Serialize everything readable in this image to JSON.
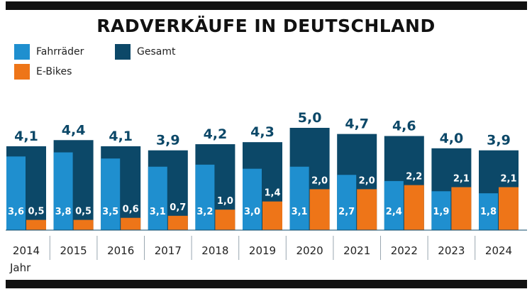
{
  "chart_data": {
    "type": "bar",
    "title": "RADVERKÄUFE IN DEUTSCHLAND",
    "xlabel": "Jahr",
    "ylabel": "",
    "categories": [
      "2014",
      "2015",
      "2016",
      "2017",
      "2018",
      "2019",
      "2020",
      "2021",
      "2022",
      "2023",
      "2024"
    ],
    "series": [
      {
        "name": "Gesamt",
        "values": [
          4.1,
          4.4,
          4.1,
          3.9,
          4.2,
          4.3,
          5.0,
          4.7,
          4.6,
          4.0,
          3.9
        ],
        "labels": [
          "4,1",
          "4,4",
          "4,1",
          "3,9",
          "4,2",
          "4,3",
          "5,0",
          "4,7",
          "4,6",
          "4,0",
          "3,9"
        ],
        "color": "#0c4868"
      },
      {
        "name": "Fahrräder",
        "values": [
          3.6,
          3.8,
          3.5,
          3.1,
          3.2,
          3.0,
          3.1,
          2.7,
          2.4,
          1.9,
          1.8
        ],
        "labels": [
          "3,6",
          "3,8",
          "3,5",
          "3,1",
          "3,2",
          "3,0",
          "3,1",
          "2,7",
          "2,4",
          "1,9",
          "1,8"
        ],
        "color": "#1f8fcf"
      },
      {
        "name": "E-Bikes",
        "values": [
          0.5,
          0.5,
          0.6,
          0.7,
          1.0,
          1.4,
          2.0,
          2.0,
          2.2,
          2.1,
          2.1
        ],
        "labels": [
          "0,5",
          "0,5",
          "0,6",
          "0,7",
          "1,0",
          "1,4",
          "2,0",
          "2,0",
          "2,2",
          "2,1",
          "2,1"
        ],
        "color": "#ee7518"
      }
    ],
    "ylim": [
      0,
      5.0
    ],
    "grid": false,
    "legend": "top-left"
  }
}
